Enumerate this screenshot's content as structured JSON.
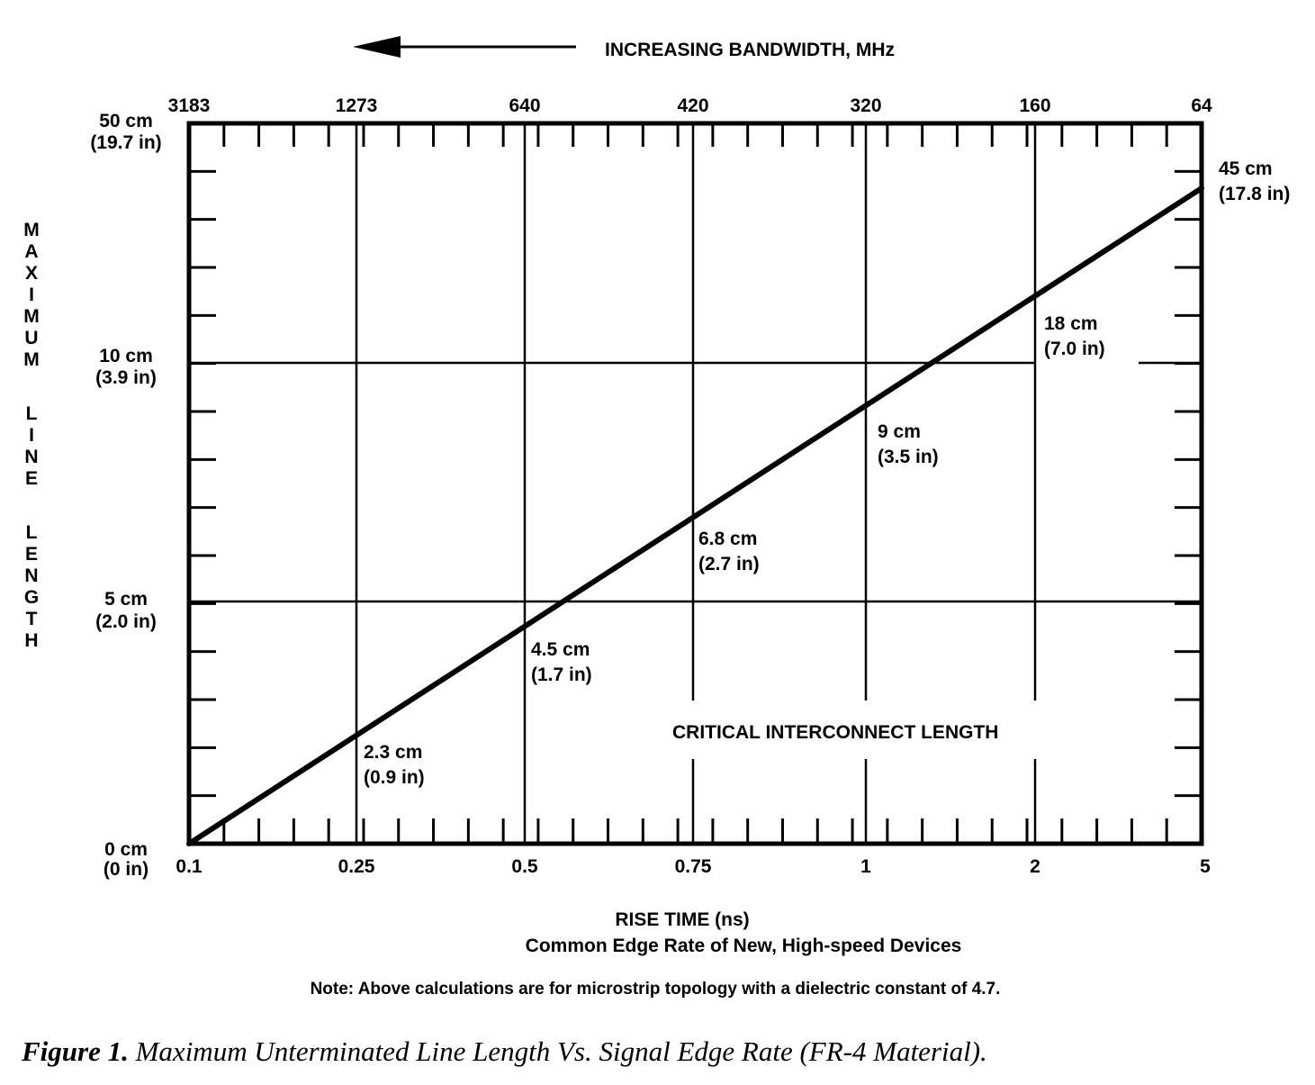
{
  "chart_data": {
    "type": "line",
    "top_axis_label": "INCREASING BANDWIDTH, MHz",
    "top_ticks": [
      "3183",
      "1273",
      "640",
      "420",
      "320",
      "160",
      "64"
    ],
    "x_ticks": [
      "0.1",
      "0.25",
      "0.5",
      "0.75",
      "1",
      "2",
      "5"
    ],
    "xlabel": "RISE TIME (ns)",
    "xlabel_sub": "Common Edge Rate of New, High-speed Devices",
    "ylabel": "MAXIMUM LINE LENGTH",
    "y_ticks": [
      {
        "cm": "0 cm",
        "in": "(0 in)"
      },
      {
        "cm": "5 cm",
        "in": "(2.0 in)"
      },
      {
        "cm": "10 cm",
        "in": "(3.9 in)"
      },
      {
        "cm": "50 cm",
        "in": "(19.7 in)"
      }
    ],
    "series": [
      {
        "x": [
          "0.1",
          "0.25",
          "0.5",
          "0.75",
          "1",
          "2",
          "5"
        ],
        "values_cm": [
          0,
          2.3,
          4.5,
          6.8,
          9,
          18,
          45
        ],
        "values_in": [
          0,
          0.9,
          1.7,
          2.7,
          3.5,
          7.0,
          17.8
        ]
      }
    ],
    "point_labels": [
      {
        "cm": "2.3 cm",
        "in": "(0.9 in)"
      },
      {
        "cm": "4.5 cm",
        "in": "(1.7 in)"
      },
      {
        "cm": "6.8 cm",
        "in": "(2.7 in)"
      },
      {
        "cm": "9 cm",
        "in": "(3.5 in)"
      },
      {
        "cm": "18 cm",
        "in": "(7.0 in)"
      },
      {
        "cm": "45 cm",
        "in": "(17.8 in)"
      }
    ],
    "annotation": "CRITICAL INTERCONNECT LENGTH",
    "grid": true
  },
  "note": "Note:  Above calculations are for microstrip topology with a dielectric constant of 4.7.",
  "caption": {
    "figure": "Figure 1.",
    "text": " Maximum Unterminated Line Length Vs. Signal Edge Rate (FR-4 Material)."
  }
}
